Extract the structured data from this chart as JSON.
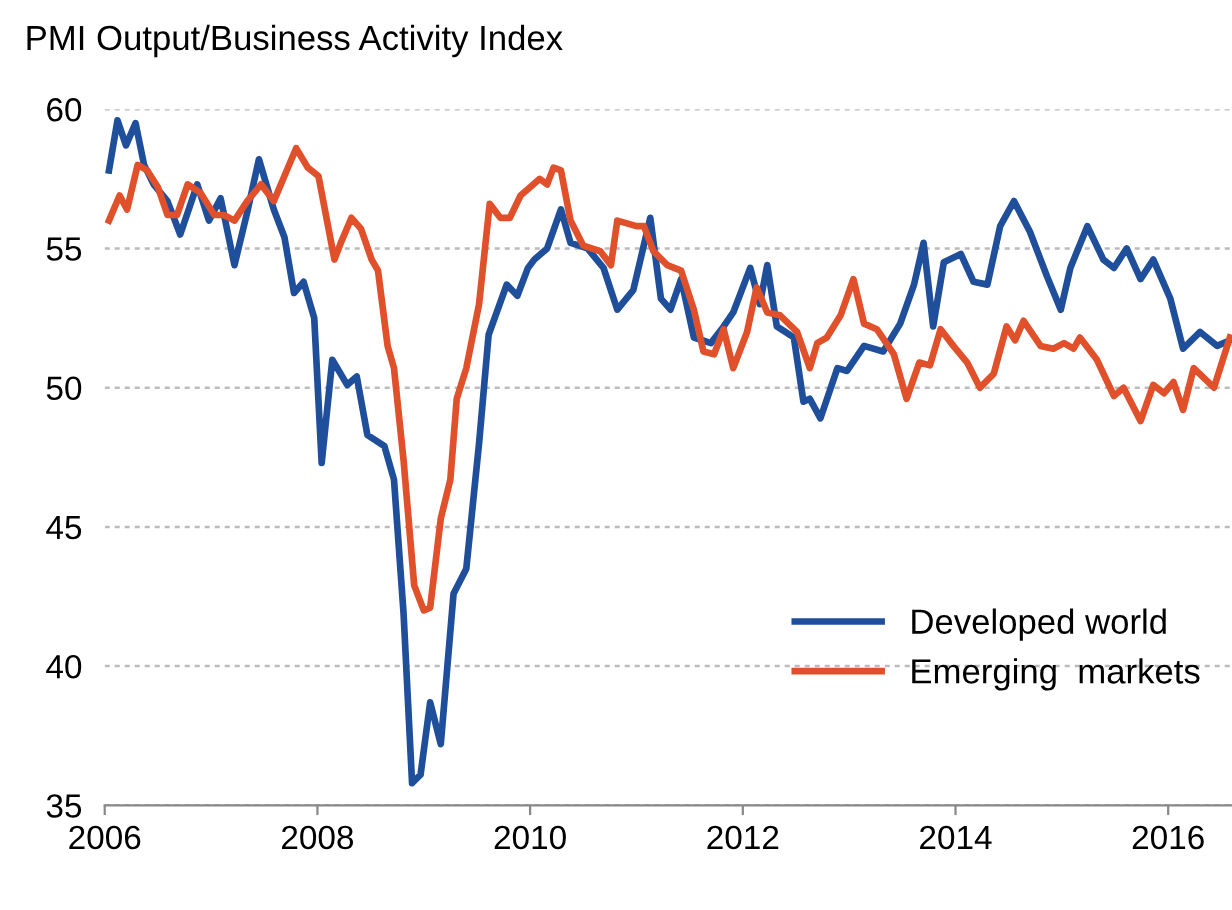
{
  "chart_data": {
    "type": "line",
    "title": "PMI Output/Business Activity Index",
    "xlim": [
      2006,
      2016.6
    ],
    "xticks": [
      2006,
      2008,
      2010,
      2012,
      2014,
      2016
    ],
    "ylim": [
      35,
      60
    ],
    "yticks": [
      35,
      40,
      45,
      50,
      55,
      60
    ],
    "grid": "y",
    "legend": "bottom right",
    "marker": "none",
    "line_style": "solid",
    "series": [
      {
        "name": "Developed world",
        "color": "#1f4e9a",
        "x": [
          2006.04,
          2006.12,
          2006.2,
          2006.29,
          2006.37,
          2006.46,
          2006.59,
          2006.71,
          2006.87,
          2006.98,
          2007.09,
          2007.22,
          2007.34,
          2007.45,
          2007.59,
          2007.69,
          2007.78,
          2007.87,
          2007.97,
          2008.04,
          2008.14,
          2008.28,
          2008.37,
          2008.47,
          2008.63,
          2008.72,
          2008.81,
          2008.89,
          2008.97,
          2009.06,
          2009.16,
          2009.28,
          2009.4,
          2009.52,
          2009.61,
          2009.78,
          2009.88,
          2009.98,
          2010.04,
          2010.16,
          2010.29,
          2010.38,
          2010.54,
          2010.69,
          2010.82,
          2010.97,
          2011.13,
          2011.23,
          2011.32,
          2011.42,
          2011.54,
          2011.7,
          2011.82,
          2011.91,
          2012.07,
          2012.16,
          2012.23,
          2012.32,
          2012.48,
          2012.57,
          2012.63,
          2012.73,
          2012.89,
          2012.98,
          2013.14,
          2013.32,
          2013.48,
          2013.61,
          2013.7,
          2013.79,
          2013.89,
          2014.05,
          2014.17,
          2014.3,
          2014.42,
          2014.55,
          2014.7,
          2014.86,
          2014.99,
          2015.08,
          2015.24,
          2015.39,
          2015.49,
          2015.61,
          2015.74,
          2015.86,
          2016.02,
          2016.14,
          2016.3,
          2016.46,
          2016.58
        ],
        "values": [
          57.8,
          59.6,
          58.7,
          59.5,
          58,
          57.3,
          56.7,
          55.5,
          57.3,
          56,
          56.8,
          54.4,
          56.3,
          58.2,
          56.4,
          55.4,
          53.4,
          53.8,
          52.5,
          47.3,
          51,
          50.1,
          50.4,
          48.3,
          47.9,
          46.7,
          41.9,
          35.8,
          36.1,
          38.7,
          37.2,
          42.6,
          43.5,
          48,
          51.9,
          53.7,
          53.3,
          54.3,
          54.6,
          55,
          56.4,
          55.2,
          55,
          54.3,
          52.8,
          53.5,
          56.1,
          53.2,
          52.8,
          53.9,
          51.8,
          51.6,
          52.2,
          52.7,
          54.3,
          53,
          54.4,
          52.2,
          51.8,
          49.5,
          49.6,
          48.9,
          50.7,
          50.6,
          51.5,
          51.3,
          52.3,
          53.7,
          55.2,
          52.2,
          54.5,
          54.8,
          53.8,
          53.7,
          55.8,
          56.7,
          55.6,
          54,
          52.8,
          54.3,
          55.8,
          54.6,
          54.3,
          55,
          53.9,
          54.6,
          53.2,
          51.4,
          52,
          51.5,
          51.7
        ]
      },
      {
        "name": "Emerging  markets",
        "color": "#e0502a",
        "x": [
          2006.04,
          2006.14,
          2006.21,
          2006.31,
          2006.4,
          2006.5,
          2006.59,
          2006.68,
          2006.78,
          2006.9,
          2007.03,
          2007.12,
          2007.22,
          2007.34,
          2007.47,
          2007.59,
          2007.69,
          2007.8,
          2007.91,
          2008.01,
          2008.09,
          2008.16,
          2008.22,
          2008.32,
          2008.41,
          2008.51,
          2008.57,
          2008.66,
          2008.72,
          2008.81,
          2008.91,
          2009.0,
          2009.06,
          2009.16,
          2009.25,
          2009.31,
          2009.4,
          2009.52,
          2009.62,
          2009.72,
          2009.81,
          2009.91,
          2010.0,
          2010.09,
          2010.16,
          2010.22,
          2010.29,
          2010.38,
          2010.5,
          2010.66,
          2010.76,
          2010.82,
          2011.0,
          2011.07,
          2011.16,
          2011.29,
          2011.42,
          2011.54,
          2011.63,
          2011.73,
          2011.82,
          2011.91,
          2012.04,
          2012.13,
          2012.23,
          2012.35,
          2012.51,
          2012.63,
          2012.7,
          2012.79,
          2012.92,
          2013.04,
          2013.14,
          2013.26,
          2013.42,
          2013.54,
          2013.66,
          2013.76,
          2013.86,
          2013.98,
          2014.11,
          2014.23,
          2014.36,
          2014.48,
          2014.56,
          2014.64,
          2014.8,
          2014.92,
          2015.02,
          2015.11,
          2015.17,
          2015.33,
          2015.49,
          2015.58,
          2015.74,
          2015.86,
          2015.96,
          2016.05,
          2016.14,
          2016.24,
          2016.43,
          2016.58
        ],
        "values": [
          56,
          56.9,
          56.4,
          58,
          57.8,
          57.2,
          56.2,
          56.2,
          57.3,
          57,
          56.2,
          56.2,
          56,
          56.7,
          57.3,
          56.7,
          57.6,
          58.6,
          57.9,
          57.6,
          56,
          54.6,
          55.2,
          56.1,
          55.7,
          54.6,
          54.2,
          51.5,
          50.7,
          47.4,
          42.9,
          42,
          42.1,
          45.3,
          46.7,
          49.6,
          50.7,
          53,
          56.6,
          56.1,
          56.1,
          56.9,
          57.2,
          57.5,
          57.3,
          57.9,
          57.8,
          56,
          55.1,
          54.9,
          54.4,
          56,
          55.8,
          55.8,
          54.9,
          54.4,
          54.2,
          52.8,
          51.3,
          51.2,
          52.1,
          50.7,
          52,
          53.6,
          52.7,
          52.6,
          52,
          50.7,
          51.6,
          51.8,
          52.6,
          53.9,
          52.3,
          52.1,
          51.2,
          49.6,
          50.9,
          50.8,
          52.1,
          51.5,
          50.9,
          50,
          50.5,
          52.2,
          51.7,
          52.4,
          51.5,
          51.4,
          51.6,
          51.4,
          51.8,
          51,
          49.7,
          50,
          48.8,
          50.1,
          49.8,
          50.2,
          49.2,
          50.7,
          50,
          51.8
        ]
      }
    ]
  }
}
